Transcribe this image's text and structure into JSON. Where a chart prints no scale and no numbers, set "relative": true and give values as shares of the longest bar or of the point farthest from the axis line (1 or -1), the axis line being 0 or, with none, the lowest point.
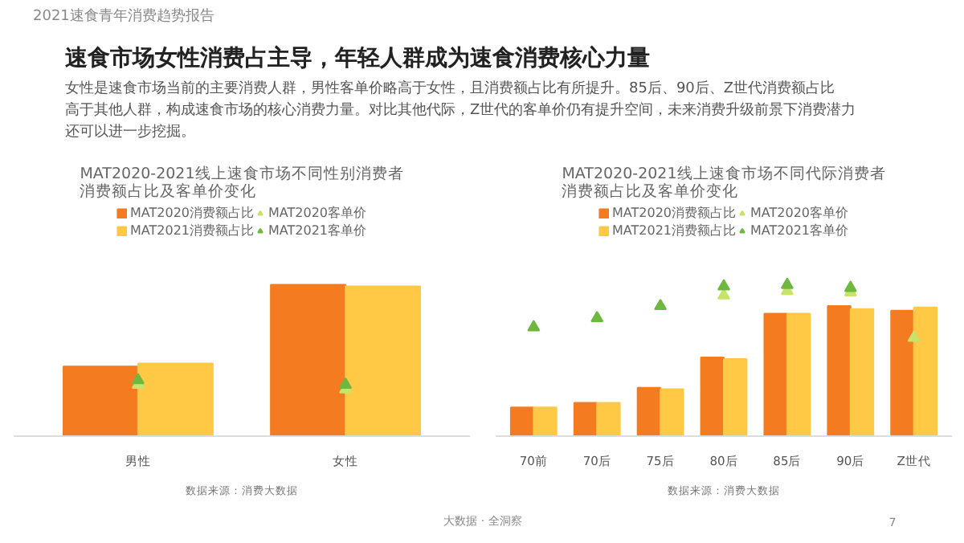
{
  "chart_data": [
    {
      "type": "other",
      "subtitle": "2021速食青年消费趋势报告",
      "title": "速食市场女性消费占主导，年轻人群成为速食消费核心力量",
      "annotations": [
        "女性是速食市场当前的主要消费人群，男性客单价略高于女性，且消费额占比有所提升。85后、90后、Z世代消费额占比高于其他人群，构成速食市场的核心消费力量。对比其他代际，Z世代的客单价仍有提升空间，未来消费升级前景下消费潜力还可以进一步挖掘。",
        "大数据 · 全洞察",
        "7"
      ]
    },
    {
      "type": "bar",
      "relative": true,
      "title": "MAT2020-2021线上速食市场不同性别消费者消费额占比及客单价变化",
      "categories": [
        "男性",
        "女性"
      ],
      "legend": "top",
      "annotations": [
        "数据来源：消费大数据"
      ],
      "series": [
        {
          "name": "MAT2020消费额占比",
          "color": "#f47b20",
          "values": [
            0.46,
            1
          ]
        },
        {
          "name": "MAT2021消费额占比",
          "color": "#ffc845",
          "values": [
            0.48,
            0.99
          ]
        },
        {
          "name": "MAT2020客单价",
          "type": "scatter",
          "marker": "triangle",
          "color": "#c8e36a",
          "values": [
            0.34,
            0.31
          ]
        },
        {
          "name": "MAT2021客单价",
          "type": "scatter",
          "marker": "triangle",
          "color": "#6fb83f",
          "values": [
            0.37,
            0.34
          ]
        }
      ]
    },
    {
      "type": "bar",
      "relative": true,
      "title": "MAT2020-2021线上速食市场不同代际消费者消费额占比及客单价变化",
      "categories": [
        "70前",
        "70后",
        "75后",
        "80后",
        "85后",
        "90后",
        "Z世代"
      ],
      "legend": "top",
      "annotations": [
        "数据来源：消费大数据"
      ],
      "series": [
        {
          "name": "MAT2020消费额占比",
          "color": "#f47b20",
          "values": [
            0.19,
            0.22,
            0.32,
            0.52,
            0.81,
            0.86,
            0.83
          ]
        },
        {
          "name": "MAT2021消费额占比",
          "color": "#ffc845",
          "values": [
            0.19,
            0.22,
            0.31,
            0.51,
            0.81,
            0.84,
            0.85
          ]
        },
        {
          "name": "MAT2020客单价",
          "type": "scatter",
          "marker": "triangle",
          "color": "#c8e36a",
          "values": [
            null,
            null,
            null,
            0.93,
            0.96,
            0.95,
            0.65
          ]
        },
        {
          "name": "MAT2021客单价",
          "type": "scatter",
          "marker": "triangle",
          "color": "#6fb83f",
          "values": [
            0.72,
            0.78,
            0.86,
            0.99,
            1,
            0.98,
            null
          ]
        }
      ]
    }
  ]
}
